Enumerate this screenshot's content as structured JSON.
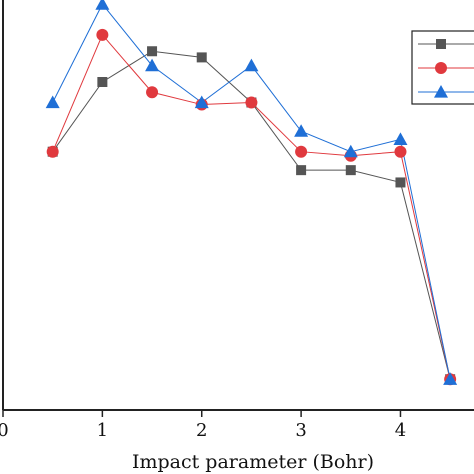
{
  "chart_data": {
    "type": "line",
    "title": "",
    "xlabel": "Impact parameter (Bohr)",
    "ylabel": "",
    "xlim": [
      0,
      4.74
    ],
    "ylim": [
      0,
      1
    ],
    "x_ticks": [
      0,
      1,
      2,
      3,
      4
    ],
    "x_tick_labels": [
      "0",
      "1",
      "2",
      "3",
      "4"
    ],
    "grid": false,
    "legend": "top-right",
    "x": [
      0.5,
      1.0,
      1.5,
      2.0,
      2.5,
      3.0,
      3.5,
      4.0,
      4.5
    ],
    "series": [
      {
        "marker": "square",
        "color": "#555555",
        "values": [
          0.63,
          0.8,
          0.875,
          0.86,
          0.75,
          0.585,
          0.585,
          0.555,
          0.075
        ]
      },
      {
        "marker": "circle",
        "color": "#e0393e",
        "values": [
          0.63,
          0.915,
          0.775,
          0.745,
          0.75,
          0.63,
          0.62,
          0.63,
          0.075
        ]
      },
      {
        "marker": "triangle",
        "color": "#1f6fd6",
        "values": [
          0.75,
          0.99,
          0.84,
          0.75,
          0.84,
          0.68,
          0.63,
          0.66,
          0.075
        ]
      }
    ]
  }
}
